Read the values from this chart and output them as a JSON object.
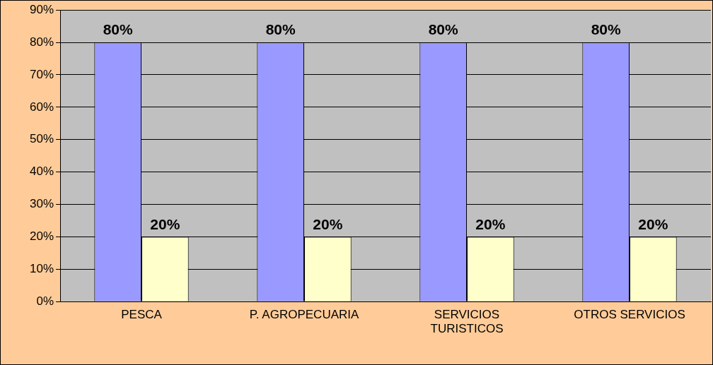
{
  "chart_data": {
    "type": "bar",
    "categories": [
      "PESCA",
      "P. AGROPECUARIA",
      "SERVICIOS\nTURISTICOS",
      "OTROS SERVICIOS"
    ],
    "series": [
      {
        "color": "#9999ff",
        "values": [
          80,
          80,
          80,
          80
        ],
        "value_labels": [
          "80%",
          "80%",
          "80%",
          "80%"
        ]
      },
      {
        "color": "#ffffcc",
        "values": [
          20,
          20,
          20,
          20
        ],
        "value_labels": [
          "20%",
          "20%",
          "20%",
          "20%"
        ]
      }
    ],
    "ylim": [
      0,
      90
    ],
    "yticks": [
      {
        "value": 0,
        "label": "0%"
      },
      {
        "value": 10,
        "label": "10%"
      },
      {
        "value": 20,
        "label": "20%"
      },
      {
        "value": 30,
        "label": "30%"
      },
      {
        "value": 40,
        "label": "40%"
      },
      {
        "value": 50,
        "label": "50%"
      },
      {
        "value": 60,
        "label": "60%"
      },
      {
        "value": 70,
        "label": "70%"
      },
      {
        "value": 80,
        "label": "80%"
      },
      {
        "value": 90,
        "label": "90%"
      }
    ],
    "grid": "y",
    "legend": false
  }
}
